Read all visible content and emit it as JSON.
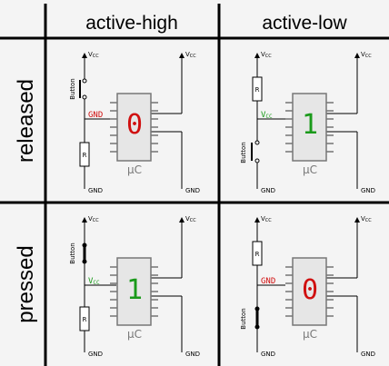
{
  "headers": {
    "col1": "active-high",
    "col2": "active-low"
  },
  "rows": {
    "row1": "released",
    "row2": "pressed"
  },
  "labels": {
    "vcc": "V",
    "vcc_sub": "CC",
    "gnd": "GND",
    "button": "Button",
    "resistor": "R",
    "uc": "µC"
  },
  "cells": {
    "released_high": {
      "pin_label": "GND",
      "pin_label_sub": "",
      "pin_color": "#d01010",
      "value": "0",
      "value_color": "#d01010"
    },
    "released_low": {
      "pin_label": "V",
      "pin_label_sub": "CC",
      "pin_color": "#1a9a1a",
      "value": "1",
      "value_color": "#1a9a1a"
    },
    "pressed_high": {
      "pin_label": "V",
      "pin_label_sub": "CC",
      "pin_color": "#1a9a1a",
      "value": "1",
      "value_color": "#1a9a1a"
    },
    "pressed_low": {
      "pin_label": "GND",
      "pin_label_sub": "",
      "pin_color": "#d01010",
      "value": "0",
      "value_color": "#d01010"
    }
  }
}
